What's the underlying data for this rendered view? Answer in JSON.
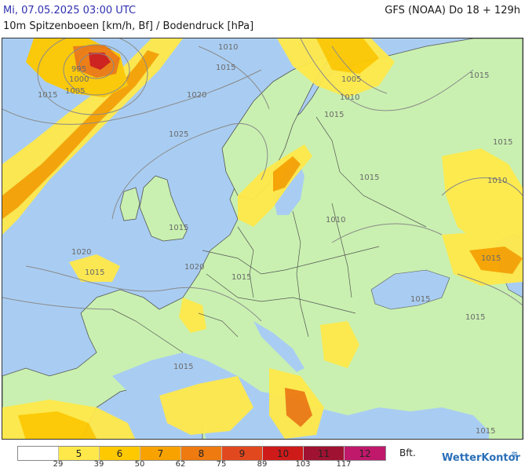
{
  "header": {
    "datetime": "Mi, 07.05.2025 03:00 UTC",
    "model": "GFS (NOAA) Do 18 + 129h",
    "subtitle": "10m Spitzenboeen [km/h, Bf] / Bodendruck [hPa]"
  },
  "legend": {
    "bft_unit": "Bft.",
    "cells": [
      {
        "bft": "",
        "color": "#ffffff"
      },
      {
        "bft": "5",
        "color": "#ffe94a"
      },
      {
        "bft": "6",
        "color": "#ffc900"
      },
      {
        "bft": "7",
        "color": "#f8a200"
      },
      {
        "bft": "8",
        "color": "#ee7a10"
      },
      {
        "bft": "9",
        "color": "#e2481e"
      },
      {
        "bft": "10",
        "color": "#cf1a1a"
      },
      {
        "bft": "11",
        "color": "#a01232"
      },
      {
        "bft": "12",
        "color": "#c0186b"
      }
    ],
    "kmh_ticks": [
      "29",
      "39",
      "50",
      "62",
      "75",
      "89",
      "103",
      "117"
    ]
  },
  "isobar_labels": [
    "1010",
    "1015",
    "995",
    "1000",
    "1005",
    "1020",
    "1015",
    "1015",
    "1005",
    "1010",
    "1015",
    "1025",
    "1015",
    "1010",
    "1015",
    "1010",
    "1020",
    "1015",
    "1020",
    "1015",
    "1015",
    "1015",
    "1015",
    "1015",
    "1015",
    "1015"
  ],
  "brand": "WetterKontor",
  "colors": {
    "sea": "#a9cdf2",
    "land": "#c9f0b0",
    "border": "#555555",
    "isobar": "#8a8a8a"
  }
}
